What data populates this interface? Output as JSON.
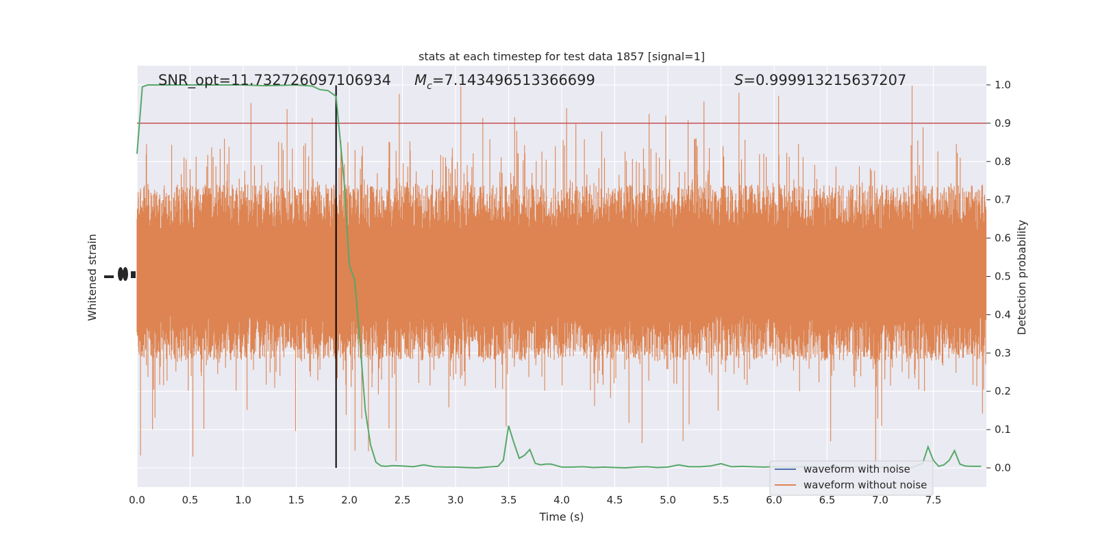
{
  "chart_data": {
    "type": "line",
    "title": "stats at each timestep for test data 1857 [signal=1]",
    "xlabel": "Time (s)",
    "ylabel_left": "Whitened strain",
    "ylabel_right": "Detection probability",
    "xlim": [
      0,
      8
    ],
    "ylim_right": [
      -0.05,
      1.05
    ],
    "x_ticks": [
      "0.0",
      "0.5",
      "1.0",
      "1.5",
      "2.0",
      "2.5",
      "3.0",
      "3.5",
      "4.0",
      "4.5",
      "5.0",
      "5.5",
      "6.0",
      "6.5",
      "7.0",
      "7.5"
    ],
    "y_ticks_right": [
      "0.0",
      "0.1",
      "0.2",
      "0.3",
      "0.4",
      "0.5",
      "0.6",
      "0.7",
      "0.8",
      "0.9",
      "1.0"
    ],
    "grid": true,
    "background": "#eaeaf2",
    "annotations": {
      "snr": "SNR_opt=11.732726097106934",
      "mc_symbol": "M",
      "mc_sub": "c",
      "mc_value": "=7.143496513366699",
      "s_symbol": "S",
      "s_value": "=0.999913215637207"
    },
    "threshold": {
      "value": 0.9,
      "color": "#c44e52"
    },
    "marker_line": {
      "x": 1.875,
      "color": "#000000"
    },
    "legend": {
      "location": "lower right",
      "entries": [
        {
          "label": "waveform with noise",
          "color": "#4c72b0"
        },
        {
          "label": "waveform without noise",
          "color": "#dd8452"
        }
      ]
    },
    "noise_band": {
      "color": "#dd8452",
      "mean": 0.5,
      "dense_low": 0.3,
      "dense_high": 0.72,
      "peak_low": 0.005,
      "peak_high": 1.0
    },
    "series": [
      {
        "color": "#55a868",
        "x": [
          0.0,
          0.05,
          0.1,
          0.2,
          0.3,
          0.5,
          0.8,
          1.0,
          1.2,
          1.5,
          1.65,
          1.72,
          1.8,
          1.875,
          1.95,
          2.0,
          2.05,
          2.1,
          2.15,
          2.2,
          2.25,
          2.3,
          2.35,
          2.4,
          2.5,
          2.6,
          2.7,
          2.8,
          2.9,
          3.0,
          3.1,
          3.2,
          3.3,
          3.4,
          3.45,
          3.5,
          3.55,
          3.6,
          3.65,
          3.7,
          3.75,
          3.8,
          3.85,
          3.9,
          4.0,
          4.1,
          4.2,
          4.3,
          4.4,
          4.5,
          4.6,
          4.7,
          4.8,
          4.9,
          5.0,
          5.1,
          5.2,
          5.3,
          5.4,
          5.5,
          5.6,
          5.7,
          5.8,
          5.9,
          6.0,
          6.1,
          6.2,
          6.3,
          6.4,
          6.5,
          6.6,
          6.7,
          6.8,
          6.9,
          7.0,
          7.1,
          7.2,
          7.3,
          7.4,
          7.45,
          7.5,
          7.55,
          7.6,
          7.65,
          7.7,
          7.75,
          7.8,
          7.85,
          7.9,
          7.95
        ],
        "y": [
          0.82,
          0.995,
          1.0,
          1.0,
          1.0,
          1.0,
          1.0,
          1.0,
          0.998,
          1.0,
          0.997,
          0.988,
          0.985,
          0.97,
          0.75,
          0.53,
          0.49,
          0.33,
          0.15,
          0.06,
          0.015,
          0.005,
          0.004,
          0.006,
          0.005,
          0.003,
          0.008,
          0.003,
          0.002,
          0.002,
          0.001,
          0.0,
          0.002,
          0.004,
          0.02,
          0.11,
          0.065,
          0.025,
          0.033,
          0.048,
          0.012,
          0.008,
          0.01,
          0.01,
          0.002,
          0.002,
          0.003,
          0.001,
          0.002,
          0.001,
          0.0,
          0.002,
          0.003,
          0.001,
          0.002,
          0.008,
          0.003,
          0.003,
          0.005,
          0.011,
          0.003,
          0.004,
          0.003,
          0.002,
          0.003,
          0.002,
          0.002,
          0.004,
          0.002,
          0.002,
          0.003,
          0.001,
          0.003,
          0.002,
          0.001,
          0.003,
          0.002,
          0.001,
          0.012,
          0.055,
          0.02,
          0.004,
          0.008,
          0.02,
          0.045,
          0.01,
          0.005,
          0.004,
          0.004,
          0.004
        ]
      }
    ]
  }
}
